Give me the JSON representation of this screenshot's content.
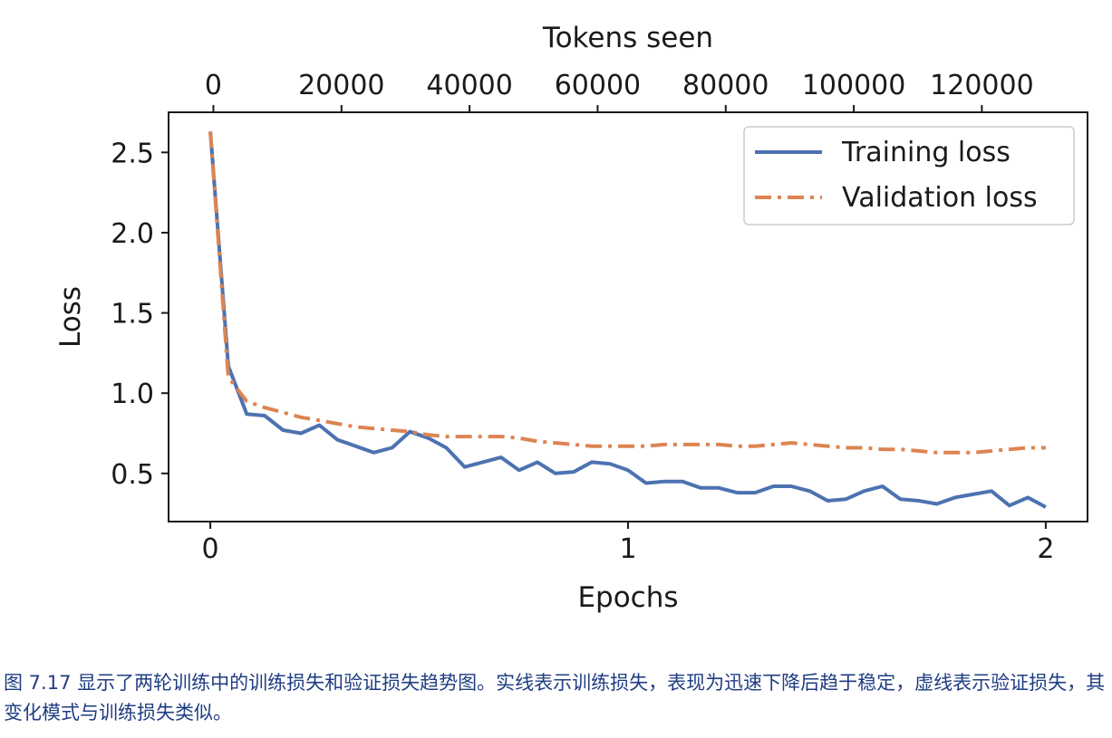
{
  "chart_data": {
    "type": "line",
    "xlabel": "Epochs",
    "x2label": "Tokens seen",
    "ylabel": "Loss",
    "xlim": [
      -0.1,
      2.1
    ],
    "ylim": [
      0.2,
      2.75
    ],
    "x2lim": [
      -7000,
      136500
    ],
    "xticks": [
      0,
      1,
      2
    ],
    "x2ticks": [
      0,
      20000,
      40000,
      60000,
      80000,
      100000,
      120000
    ],
    "yticks": [
      0.5,
      1.0,
      1.5,
      2.0,
      2.5
    ],
    "xtick_labels": [
      "0",
      "1",
      "2"
    ],
    "x2tick_labels": [
      "0",
      "20000",
      "40000",
      "60000",
      "80000",
      "100000",
      "120000"
    ],
    "ytick_labels": [
      "0.5",
      "1.0",
      "1.5",
      "2.0",
      "2.5"
    ],
    "grid": false,
    "legend_position": "top-right",
    "series": [
      {
        "name": "Training loss",
        "color": "#4c72b0",
        "style": "solid",
        "x": [
          0,
          0.043,
          0.087,
          0.13,
          0.174,
          0.217,
          0.261,
          0.304,
          0.348,
          0.391,
          0.435,
          0.478,
          0.522,
          0.565,
          0.609,
          0.652,
          0.696,
          0.739,
          0.783,
          0.826,
          0.87,
          0.913,
          0.957,
          1.0,
          1.043,
          1.087,
          1.13,
          1.174,
          1.217,
          1.261,
          1.304,
          1.348,
          1.391,
          1.435,
          1.478,
          1.522,
          1.565,
          1.609,
          1.652,
          1.696,
          1.739,
          1.783,
          1.826,
          1.87,
          1.913,
          1.957,
          2.0
        ],
        "y": [
          2.63,
          1.17,
          0.87,
          0.86,
          0.77,
          0.75,
          0.8,
          0.71,
          0.67,
          0.63,
          0.66,
          0.76,
          0.72,
          0.66,
          0.54,
          0.57,
          0.6,
          0.52,
          0.57,
          0.5,
          0.51,
          0.57,
          0.56,
          0.52,
          0.44,
          0.45,
          0.45,
          0.41,
          0.41,
          0.38,
          0.38,
          0.42,
          0.42,
          0.39,
          0.33,
          0.34,
          0.39,
          0.42,
          0.34,
          0.33,
          0.31,
          0.35,
          0.37,
          0.39,
          0.3,
          0.35,
          0.29
        ]
      },
      {
        "name": "Validation loss",
        "color": "#dd8452",
        "style": "dashdot",
        "x": [
          0,
          0.043,
          0.087,
          0.13,
          0.174,
          0.217,
          0.261,
          0.304,
          0.348,
          0.391,
          0.435,
          0.478,
          0.522,
          0.565,
          0.609,
          0.652,
          0.696,
          0.739,
          0.783,
          0.826,
          0.87,
          0.913,
          0.957,
          1.0,
          1.043,
          1.087,
          1.13,
          1.174,
          1.217,
          1.261,
          1.304,
          1.348,
          1.391,
          1.435,
          1.478,
          1.522,
          1.565,
          1.609,
          1.652,
          1.696,
          1.739,
          1.783,
          1.826,
          1.87,
          1.913,
          1.957,
          2.0
        ],
        "y": [
          2.63,
          1.1,
          0.95,
          0.91,
          0.88,
          0.85,
          0.83,
          0.81,
          0.79,
          0.78,
          0.77,
          0.76,
          0.74,
          0.73,
          0.73,
          0.73,
          0.73,
          0.72,
          0.7,
          0.69,
          0.68,
          0.67,
          0.67,
          0.67,
          0.67,
          0.68,
          0.68,
          0.68,
          0.68,
          0.67,
          0.67,
          0.68,
          0.69,
          0.68,
          0.67,
          0.66,
          0.66,
          0.65,
          0.65,
          0.64,
          0.63,
          0.63,
          0.63,
          0.64,
          0.65,
          0.66,
          0.66
        ]
      }
    ]
  },
  "caption": "图 7.17 显示了两轮训练中的训练损失和验证损失趋势图。实线表示训练损失，表现为迅速下降后趋于稳定，虚线表示验证损失，其变化模式与训练损失类似。"
}
